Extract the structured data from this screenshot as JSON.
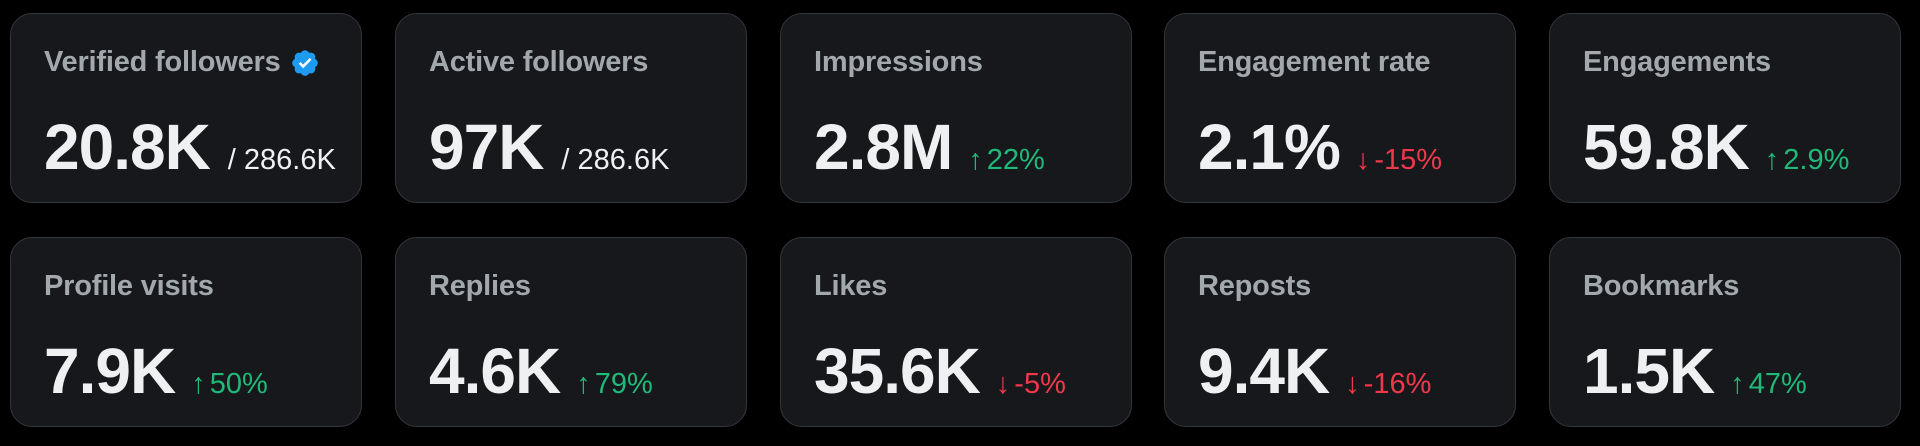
{
  "colors": {
    "background": "#000000",
    "card": "#16181c",
    "card_border": "#33363b",
    "label": "#a3a8ad",
    "value": "#eef0f2",
    "up": "#1fb978",
    "down": "#f0384a",
    "verified": "#1d9bf0"
  },
  "cards": [
    {
      "label": "Verified followers",
      "value": "20.8K",
      "total": "/ 286.6K",
      "verified_icon": "verified-badge-icon"
    },
    {
      "label": "Active followers",
      "value": "97K",
      "total": "/ 286.6K"
    },
    {
      "label": "Impressions",
      "value": "2.8M",
      "delta": "22%",
      "direction": "up"
    },
    {
      "label": "Engagement rate",
      "value": "2.1%",
      "delta": "-15%",
      "direction": "down"
    },
    {
      "label": "Engagements",
      "value": "59.8K",
      "delta": "2.9%",
      "direction": "up"
    },
    {
      "label": "Profile visits",
      "value": "7.9K",
      "delta": "50%",
      "direction": "up"
    },
    {
      "label": "Replies",
      "value": "4.6K",
      "delta": "79%",
      "direction": "up"
    },
    {
      "label": "Likes",
      "value": "35.6K",
      "delta": "-5%",
      "direction": "down"
    },
    {
      "label": "Reposts",
      "value": "9.4K",
      "delta": "-16%",
      "direction": "down"
    },
    {
      "label": "Bookmarks",
      "value": "1.5K",
      "delta": "47%",
      "direction": "up"
    }
  ]
}
